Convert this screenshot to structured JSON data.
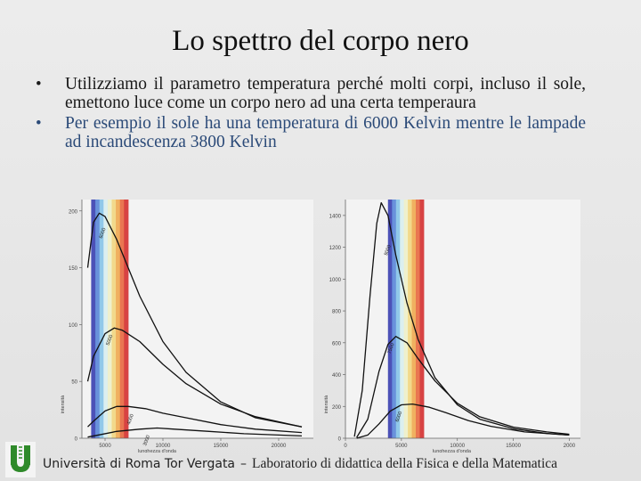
{
  "slide": {
    "title": "Lo spettro del corpo nero",
    "bullets": [
      {
        "marker": "•",
        "text": "Utilizziamo il parametro temperatura perché molti corpi, incluso il sole, emettono luce come un corpo nero ad una certa temperaura"
      },
      {
        "marker": "•",
        "text": "Per esempio il sole ha una temperatura di 6000 Kelvin mentre le lampade ad incandescenza 3800 Kelvin"
      }
    ],
    "footer": {
      "university": "Università di Roma Tor Vergata",
      "separator": "–",
      "lab": "Laboratorio di didattica della Fisica e della Matematica"
    }
  },
  "colors": {
    "bullet1_text": "#1a1a1a",
    "bullet2_text": "#2b4a78",
    "logo_green": "#2f8a2a",
    "spectrum": [
      "#3a3fb0",
      "#5a86d8",
      "#86c4e8",
      "#d8eef0",
      "#eef0c8",
      "#f2d680",
      "#f0a850",
      "#e86840",
      "#d43030"
    ]
  },
  "chart_data": [
    {
      "type": "line",
      "xlabel": "lunghezza d'onda",
      "ylabel": "intensità",
      "x_ticks": [
        "5000",
        "10000",
        "15000",
        "20000"
      ],
      "y_ticks": [
        "0",
        "50",
        "100",
        "150",
        "200"
      ],
      "xlim": [
        3000,
        23000
      ],
      "ylim": [
        0,
        210
      ],
      "visible_band": [
        3800,
        7000
      ],
      "series": [
        {
          "name": "6000",
          "x": [
            3500,
            4000,
            4500,
            5000,
            6000,
            7000,
            8000,
            10000,
            12000,
            15000,
            18000,
            22000
          ],
          "values": [
            150,
            190,
            198,
            195,
            175,
            150,
            125,
            85,
            58,
            32,
            18,
            10
          ]
        },
        {
          "name": "5000",
          "x": [
            3500,
            4000,
            5000,
            5800,
            6500,
            8000,
            10000,
            12000,
            15000,
            18000,
            22000
          ],
          "values": [
            50,
            72,
            92,
            97,
            95,
            85,
            65,
            48,
            30,
            19,
            10
          ]
        },
        {
          "name": "4000",
          "x": [
            3500,
            4000,
            5000,
            6000,
            7000,
            8500,
            10000,
            12000,
            15000,
            18000,
            22000
          ],
          "values": [
            10,
            15,
            24,
            28,
            28,
            26,
            22,
            18,
            12,
            8,
            5
          ]
        },
        {
          "name": "3000",
          "x": [
            3500,
            4500,
            6000,
            8000,
            9500,
            11000,
            14000,
            17000,
            22000
          ],
          "values": [
            1,
            3,
            6,
            8,
            9,
            8,
            6,
            4,
            2
          ]
        }
      ]
    },
    {
      "type": "line",
      "xlabel": "lunghezza d'onda",
      "ylabel": "intensità",
      "x_ticks": [
        "0",
        "5000",
        "10000",
        "15000",
        "2000"
      ],
      "y_ticks": [
        "0",
        "200",
        "400",
        "600",
        "800",
        "1000",
        "1200",
        "1400"
      ],
      "xlim": [
        0,
        21000
      ],
      "ylim": [
        0,
        1500
      ],
      "visible_band": [
        3800,
        7000
      ],
      "series": [
        {
          "name": "9000",
          "x": [
            800,
            1500,
            2200,
            2800,
            3200,
            3800,
            4500,
            5500,
            6500,
            8000,
            10000,
            12000,
            15000,
            18000,
            20000
          ],
          "values": [
            10,
            300,
            900,
            1350,
            1480,
            1400,
            1150,
            850,
            620,
            380,
            210,
            120,
            60,
            30,
            20
          ]
        },
        {
          "name": "7500",
          "x": [
            1000,
            2000,
            3000,
            3800,
            4500,
            5500,
            6500,
            8000,
            10000,
            12000,
            15000,
            18000,
            20000
          ],
          "values": [
            5,
            120,
            420,
            590,
            640,
            600,
            500,
            360,
            220,
            135,
            70,
            40,
            25
          ]
        },
        {
          "name": "6000",
          "x": [
            1000,
            2000,
            3000,
            4000,
            5000,
            6000,
            7500,
            9000,
            11000,
            13000,
            16000,
            20000
          ],
          "values": [
            0,
            20,
            90,
            170,
            210,
            215,
            195,
            160,
            110,
            75,
            40,
            20
          ]
        }
      ]
    }
  ]
}
